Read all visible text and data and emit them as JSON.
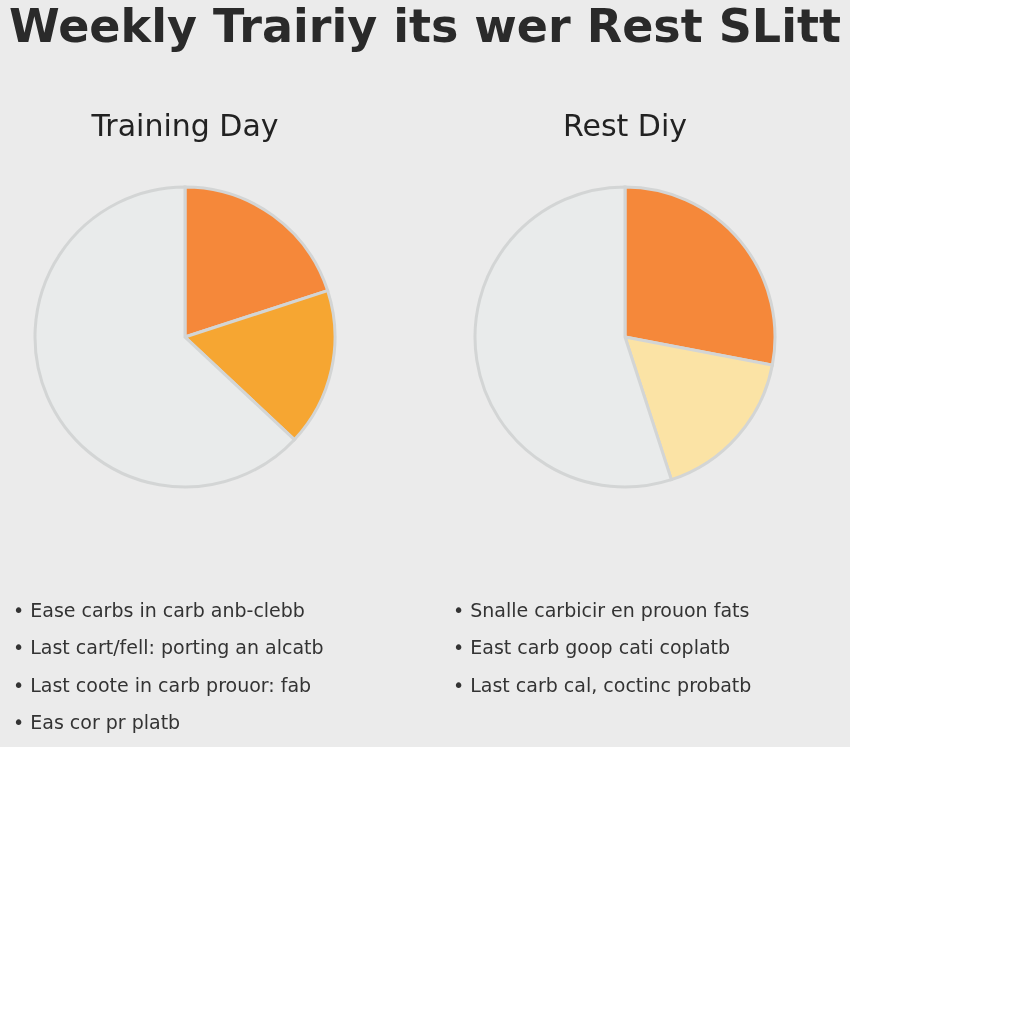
{
  "chart_data": [
    {
      "type": "pie",
      "title": "Weekly Trairiy its wer Rest SLitt",
      "subtitle": "Training Day",
      "categories": [
        null,
        null,
        null
      ],
      "values": [
        20,
        17,
        63
      ],
      "colors": [
        "#f5883a",
        "#f6a632",
        "#e9ebeb"
      ],
      "legend": false,
      "annotations": [
        "• Ease carbs in carb anb-clebb",
        "• Last cart/fell: porting an alcatb",
        "• Last coote in carb prouor: fab",
        "• Eas cor pr platb"
      ]
    },
    {
      "type": "pie",
      "title": "Rest Diy",
      "categories": [
        null,
        null,
        null
      ],
      "values": [
        28,
        17,
        55
      ],
      "colors": [
        "#f5883a",
        "#fbe3a5",
        "#e9ebeb"
      ],
      "legend": false,
      "annotations": [
        "• Snalle carbicir en prouon fats",
        "• East carb goop cati coplatb",
        "• Last carb cal, coctinc probatb"
      ]
    }
  ]
}
